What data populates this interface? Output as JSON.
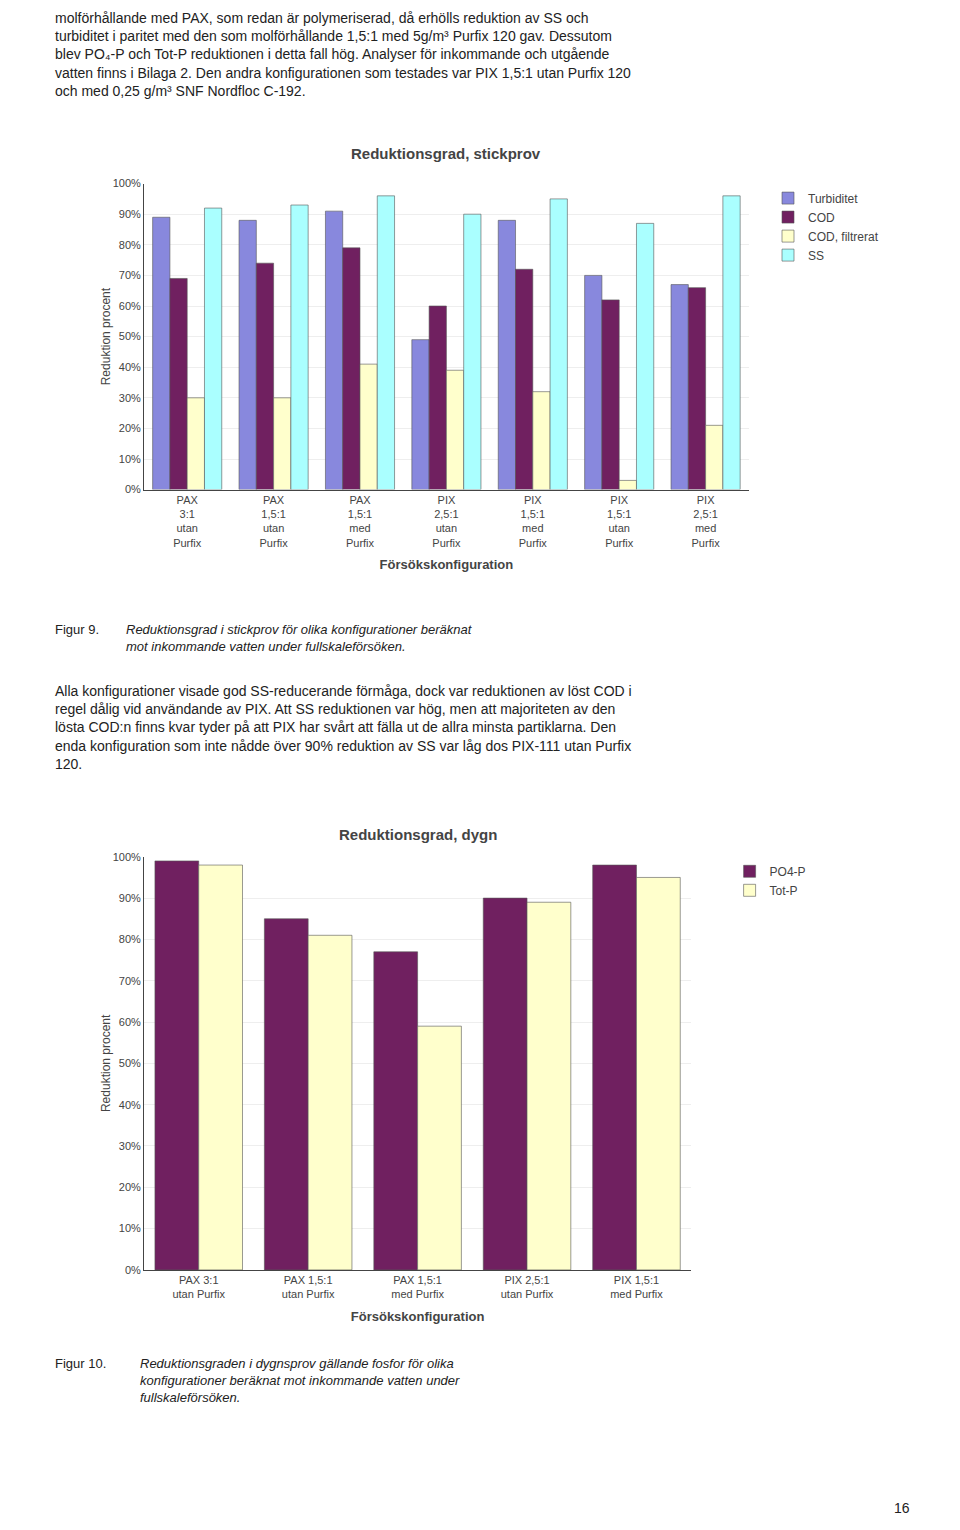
{
  "chart_data": [
    {
      "type": "bar",
      "title": "Reduktionsgrad, stickprov",
      "xlabel": "Försökskonfiguration",
      "ylabel": "Reduktion procent",
      "categories": [
        "PAX\n3:1\nutan\nPurfix",
        "PAX\n1,5:1\nutan\nPurfix",
        "PAX\n1,5:1\nmed\nPurfix",
        "PIX\n2,5:1\nutan\nPurfix",
        "PIX\n1,5:1\nmed\nPurfix",
        "PIX\n1,5:1\nutan\nPurfix",
        "PIX\n2,5:1\nmed\nPurfix"
      ],
      "series": [
        {
          "name": "Turbiditet",
          "color": "#8888DD",
          "values": [
            89,
            88,
            91,
            49,
            88,
            70,
            67
          ]
        },
        {
          "name": "COD",
          "color": "#702060",
          "values": [
            69,
            74,
            79,
            60,
            72,
            62,
            66
          ]
        },
        {
          "name": "COD, filtrerat",
          "color": "#FFFFCC",
          "values": [
            30,
            30,
            41,
            39,
            32,
            3,
            21
          ]
        },
        {
          "name": "SS",
          "color": "#AAFFFF",
          "values": [
            92,
            93,
            96,
            90,
            95,
            87,
            96
          ]
        }
      ],
      "ylim": [
        0,
        100
      ],
      "yticks": [
        {
          "value": 0,
          "label": "0%"
        },
        {
          "value": 10,
          "label": "10%"
        },
        {
          "value": 20,
          "label": "20%"
        },
        {
          "value": 30,
          "label": "30%"
        },
        {
          "value": 40,
          "label": "40%"
        },
        {
          "value": 50,
          "label": "50%"
        },
        {
          "value": 60,
          "label": "60%"
        },
        {
          "value": 70,
          "label": "70%"
        },
        {
          "value": 80,
          "label": "80%"
        },
        {
          "value": 90,
          "label": "90%"
        },
        {
          "value": 100,
          "label": "100%"
        }
      ],
      "grid": true,
      "annotations": [
        "molförhållande med PAX, som redan är polymeriserad, då erhölls reduktion av SS och\nturbiditet i paritet med den som molförhållande 1,5:1 med 5g/m³ Purfix 120 gav. Dessutom\nblev PO₄-P och Tot-P reduktionen i detta fall hög. Analyser för inkommande och utgående\nvatten finns i Bilaga 2. Den andra konfigurationen som testades var PIX 1,5:1 utan Purfix 120\noch med 0,25 g/m³ SNF Nordfloc C-192.",
        "Figur 9.",
        "Reduktionsgrad i stickprov för olika konfigurationer beräknat\nmot inkommande vatten under fullskaleförsöken."
      ]
    },
    {
      "type": "bar",
      "title": "Reduktionsgrad, dygn",
      "xlabel": "Försökskonfiguration",
      "ylabel": "Reduktion procent",
      "categories": [
        "PAX 3:1\nutan Purfix",
        "PAX 1,5:1\nutan Purfix",
        "PAX 1,5:1\nmed Purfix",
        "PIX 2,5:1\nutan Purfix",
        "PIX 1,5:1\nmed Purfix"
      ],
      "series": [
        {
          "name": "PO4-P",
          "color": "#702060",
          "values": [
            99,
            85,
            77,
            90,
            98
          ]
        },
        {
          "name": "Tot-P",
          "color": "#FFFFCC",
          "values": [
            98,
            81,
            59,
            89,
            95
          ]
        }
      ],
      "ylim": [
        0,
        100
      ],
      "yticks": [
        {
          "value": 0,
          "label": "0%"
        },
        {
          "value": 10,
          "label": "10%"
        },
        {
          "value": 20,
          "label": "20%"
        },
        {
          "value": 30,
          "label": "30%"
        },
        {
          "value": 40,
          "label": "40%"
        },
        {
          "value": 50,
          "label": "50%"
        },
        {
          "value": 60,
          "label": "60%"
        },
        {
          "value": 70,
          "label": "70%"
        },
        {
          "value": 80,
          "label": "80%"
        },
        {
          "value": 90,
          "label": "90%"
        },
        {
          "value": 100,
          "label": "100%"
        }
      ],
      "grid": true,
      "annotations": [
        "Alla konfigurationer visade god SS-reducerande förmåga, dock var reduktionen av löst COD i\nregel dålig vid användande av PIX. Att SS reduktionen var hög, men att majoriteten av den\nlösta COD:n finns kvar tyder på att PIX har svårt att fälla ut de allra minsta partiklarna. Den\nenda konfiguration som inte nådde över 90% reduktion av SS var låg dos PIX-111 utan Purfix\n120.",
        "Figur 10.",
        "Reduktionsgraden i dygnsprov gällande fosfor för olika\nkonfigurationer beräknat mot inkommande vatten under\nfullskaleförsöken.",
        "16"
      ]
    }
  ]
}
